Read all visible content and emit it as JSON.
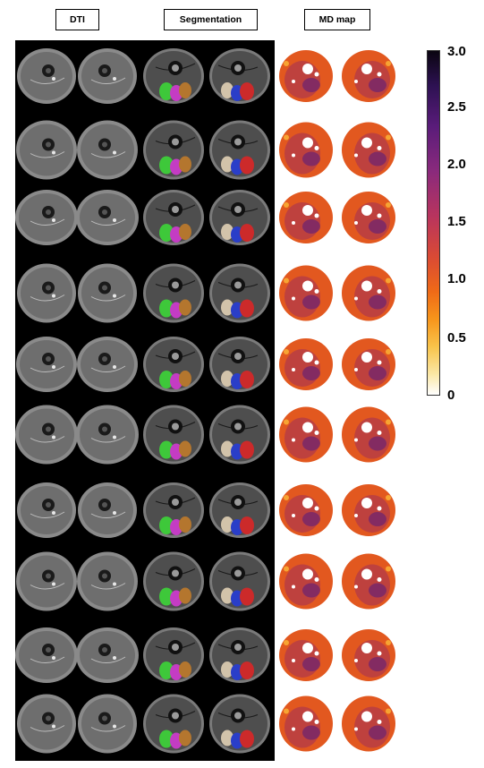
{
  "columns": {
    "dti": "DTI",
    "segmentation": "Segmentation",
    "md_map": "MD map"
  },
  "colorbar": {
    "ticks": [
      "3.0",
      "2.5",
      "2.0",
      "1.5",
      "1.0",
      "0.5",
      "0"
    ],
    "colors": [
      "#0a0510",
      "#2d1152",
      "#5a1c7a",
      "#8a2a7c",
      "#b8345e",
      "#da4a34",
      "#ef6a17",
      "#f7951b",
      "#f8c34a",
      "#fbe7a5",
      "#ffffff"
    ]
  },
  "rows": 10,
  "segment_colors": {
    "green": "#3ec83a",
    "magenta": "#c43cc4",
    "brown": "#b4762e",
    "beige": "#d2c3aa",
    "blue": "#2a3ec8",
    "red": "#cc2a2a"
  }
}
